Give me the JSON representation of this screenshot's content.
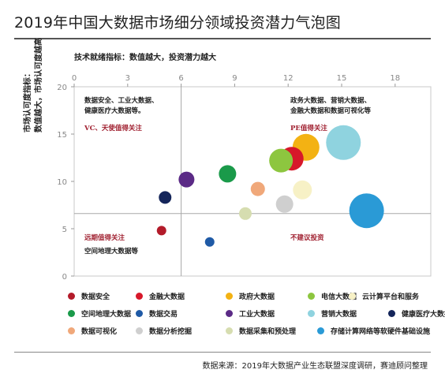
{
  "title": "2019年中国大数据市场细分领域投资潜力气泡图",
  "source": "数据来源：2019年大数据产业生态联盟深度调研，赛迪顾问整理",
  "chart_data": {
    "type": "scatter",
    "bubble": true,
    "title": "2019年中国大数据市场细分领域投资潜力气泡图",
    "xlabel": "技术就绪指标：数值越大，投资潜力越大",
    "ylabel_lines": [
      "市场认可度指标：",
      "数值越大，市场认可度越高"
    ],
    "xlim": [
      0,
      20
    ],
    "ylim": [
      0,
      20
    ],
    "xticks": [
      "0",
      "3",
      "6",
      "9",
      "12",
      "15",
      "18"
    ],
    "yticks": [
      "0",
      "5",
      "10",
      "15",
      "20"
    ],
    "divider_x": 6,
    "divider_y": 6.6,
    "quadrants": {
      "top_left": {
        "lines": [
          "数据安全、工业大数据、",
          "健康医疗大数据等。"
        ],
        "note": "VC、天使值得关注"
      },
      "top_right": {
        "lines": [
          "政务大数据、营销大数据、",
          "金融大数据和数据可视化等"
        ],
        "note": "PE值得关注"
      },
      "bottom_left": {
        "note": "远期值得关注",
        "lines": [
          "空间地理大数据等"
        ]
      },
      "bottom_right": {
        "note": "不建议投资",
        "lines": []
      }
    },
    "series": [
      {
        "name": "数据安全",
        "color": "#b31b2a",
        "x": 4.9,
        "y": 4.8,
        "size": 6
      },
      {
        "name": "金融大数据",
        "color": "#d7182a",
        "x": 12.2,
        "y": 12.4,
        "size": 15
      },
      {
        "name": "政府大数据",
        "color": "#f3b213",
        "x": 13.0,
        "y": 13.6,
        "size": 17
      },
      {
        "name": "电信大数据",
        "color": "#8dc63f",
        "x": 11.6,
        "y": 12.2,
        "size": 15
      },
      {
        "name": "云计算平台和服务",
        "color": "#f7f1c6",
        "x": 12.8,
        "y": 9.1,
        "size": 12
      },
      {
        "name": "空间地理大数据",
        "color": "#1a9a4a",
        "x": 8.6,
        "y": 10.8,
        "size": 11
      },
      {
        "name": "数据交易",
        "color": "#1f5aa6",
        "x": 7.6,
        "y": 3.6,
        "size": 6
      },
      {
        "name": "工业大数据",
        "color": "#5b2a86",
        "x": 6.3,
        "y": 10.2,
        "size": 10
      },
      {
        "name": "营销大数据",
        "color": "#8fd3df",
        "x": 15.1,
        "y": 14.1,
        "size": 22
      },
      {
        "name": "健康医疗大数据",
        "color": "#14255a",
        "x": 5.1,
        "y": 8.3,
        "size": 8
      },
      {
        "name": "数据可视化",
        "color": "#f0a87a",
        "x": 10.3,
        "y": 9.2,
        "size": 9
      },
      {
        "name": "数据分析挖掘",
        "color": "#cfcfcf",
        "x": 11.8,
        "y": 7.6,
        "size": 11
      },
      {
        "name": "数据采集和预处理",
        "color": "#d6ddb0",
        "x": 9.6,
        "y": 6.6,
        "size": 8
      },
      {
        "name": "存储计算网络等软硬件基础设施",
        "color": "#2a9ad6",
        "x": 16.4,
        "y": 6.9,
        "size": 22
      }
    ],
    "legend_placement": "bottom",
    "grid": false
  }
}
